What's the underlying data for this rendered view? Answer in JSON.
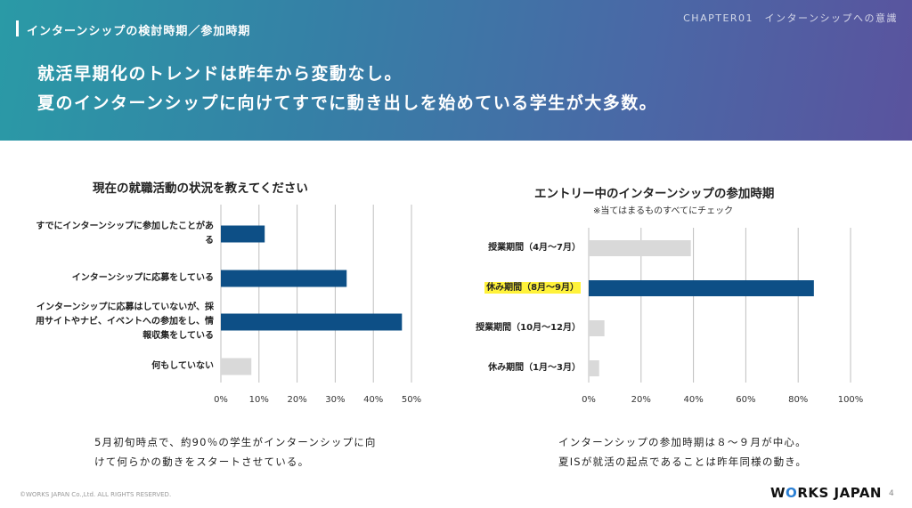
{
  "header": {
    "section_title": "インターンシップの検討時期／参加時期",
    "chapter": "CHAPTER01　インターンシップへの意識",
    "headline_1": "就活早期化のトレンドは昨年から変動なし。",
    "headline_2": "夏のインターンシップに向けてすでに動き出しを始めている学生が大多数。"
  },
  "chart_data": [
    {
      "type": "bar",
      "orientation": "horizontal",
      "title": "現在の就職活動の状況を教えてください",
      "categories": [
        "すでにインターンシップに参加したことがある",
        "インターンシップに応募をしている",
        "インターンシップに応募はしていないが、採用サイトやナビ、イベントへの参加をし、情報収集をしている",
        "何もしていない"
      ],
      "category_lines": [
        [
          "すでにインターンシップに参加したことがあ",
          "る"
        ],
        [
          "インターンシップに応募をしている"
        ],
        [
          "インターンシップに応募はしていないが、採",
          "用サイトやナビ、イベントへの参加をし、情",
          "報収集をしている"
        ],
        [
          "何もしていない"
        ]
      ],
      "values": [
        11.5,
        33,
        47.5,
        8
      ],
      "highlight": [
        true,
        true,
        true,
        false
      ],
      "ticks": [
        "0%",
        "10%",
        "20%",
        "30%",
        "40%",
        "50%"
      ],
      "xlim": [
        0,
        50
      ],
      "caption_lines": [
        "5月初旬時点で、約90％の学生がインターンシップに向",
        "けて何らかの動きをスタートさせている。"
      ]
    },
    {
      "type": "bar",
      "orientation": "horizontal",
      "title": "エントリー中のインターンシップの参加時期",
      "subtitle": "※当てはまるものすべてにチェック",
      "categories": [
        "授業期間（4月～7月）",
        "休み期間（8月～9月）",
        "授業期間（10月～12月）",
        "休み期間（1月～3月）"
      ],
      "values": [
        39,
        86,
        6,
        4
      ],
      "highlight": [
        false,
        true,
        false,
        false
      ],
      "label_highlight": [
        false,
        true,
        false,
        false
      ],
      "ticks": [
        "0%",
        "20%",
        "40%",
        "60%",
        "80%",
        "100%"
      ],
      "xlim": [
        0,
        100
      ],
      "caption_lines": [
        "インターンシップの参加時期は８～９月が中心。",
        "夏ISが就活の起点であることは昨年同様の動き。"
      ]
    }
  ],
  "colors": {
    "bar_highlight": "#0d4f86",
    "bar_muted": "#d9d9d9",
    "grid": "#bfbfbf",
    "label_marker": "#fff23a"
  },
  "footer": {
    "copyright": "©WORKS JAPAN Co.,Ltd. ALL RIGHTS RESERVED.",
    "logo_main": "W",
    "logo_mark": "O",
    "logo_rest": "RKS JAPAN",
    "page_number": "4"
  }
}
